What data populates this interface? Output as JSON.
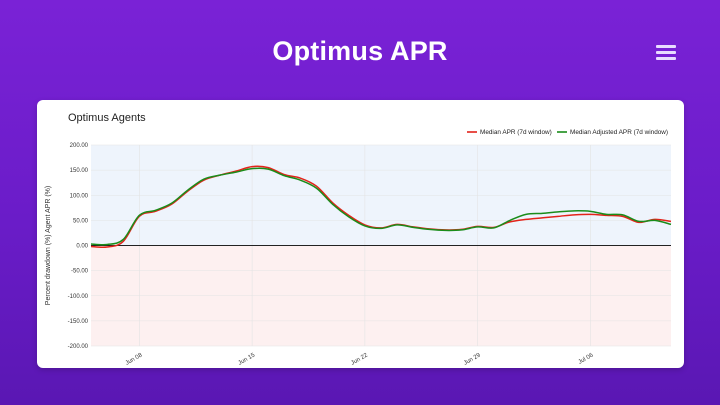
{
  "page": {
    "title": "Optimus APR",
    "menu_icon": "menu-icon"
  },
  "card": {
    "title": "Optimus Agents"
  },
  "chart_data": {
    "type": "line",
    "title": "Optimus Agents",
    "ylabel": "Percent drawdown (%) Agent APR (%)",
    "xlabel": "",
    "ylim": [
      -200,
      200
    ],
    "yticks": [
      200,
      150,
      100,
      50,
      0,
      -50,
      -100,
      -150,
      -200
    ],
    "ytick_labels": [
      "200.00",
      "150.00",
      "100.00",
      "50.00",
      "0.00",
      "-50.00",
      "-100.00",
      "-150.00",
      "-200.00"
    ],
    "xlim": [
      "2025-06-05",
      "2025-07-11"
    ],
    "xticks": [
      "2025-06-08",
      "2025-06-15",
      "2025-06-22",
      "2025-06-29",
      "2025-07-06"
    ],
    "xtick_labels": [
      "Jun 08",
      "Jun 15",
      "Jun 22",
      "Jun 29",
      "Jul 06"
    ],
    "grid": true,
    "legend_position": "top-right",
    "positive_region_color": "#eef4fc",
    "negative_region_color": "#fdf0f0",
    "zero_line_color": "#222222",
    "x": [
      "2025-06-05",
      "2025-06-06",
      "2025-06-07",
      "2025-06-08",
      "2025-06-09",
      "2025-06-10",
      "2025-06-11",
      "2025-06-12",
      "2025-06-13",
      "2025-06-14",
      "2025-06-15",
      "2025-06-16",
      "2025-06-17",
      "2025-06-18",
      "2025-06-19",
      "2025-06-20",
      "2025-06-21",
      "2025-06-22",
      "2025-06-23",
      "2025-06-24",
      "2025-06-25",
      "2025-06-26",
      "2025-06-27",
      "2025-06-28",
      "2025-06-29",
      "2025-06-30",
      "2025-07-01",
      "2025-07-02",
      "2025-07-03",
      "2025-07-04",
      "2025-07-05",
      "2025-07-06",
      "2025-07-07",
      "2025-07-08",
      "2025-07-09",
      "2025-07-10",
      "2025-07-11"
    ],
    "series": [
      {
        "name": "Median APR (7d window)",
        "color": "#e2231a",
        "values": [
          -2,
          -3,
          8,
          58,
          68,
          82,
          108,
          130,
          140,
          148,
          157,
          155,
          141,
          134,
          118,
          85,
          60,
          41,
          35,
          42,
          37,
          33,
          31,
          32,
          38,
          36,
          47,
          52,
          55,
          58,
          61,
          62,
          60,
          58,
          46,
          52,
          48
        ]
      },
      {
        "name": "Median Adjusted APR (7d window)",
        "color": "#1a8c1a",
        "values": [
          3,
          2,
          12,
          60,
          70,
          84,
          110,
          132,
          140,
          146,
          153,
          152,
          139,
          130,
          114,
          82,
          57,
          39,
          34,
          41,
          36,
          32,
          30,
          31,
          37,
          35,
          50,
          62,
          64,
          67,
          69,
          68,
          62,
          61,
          48,
          50,
          42
        ]
      }
    ]
  }
}
